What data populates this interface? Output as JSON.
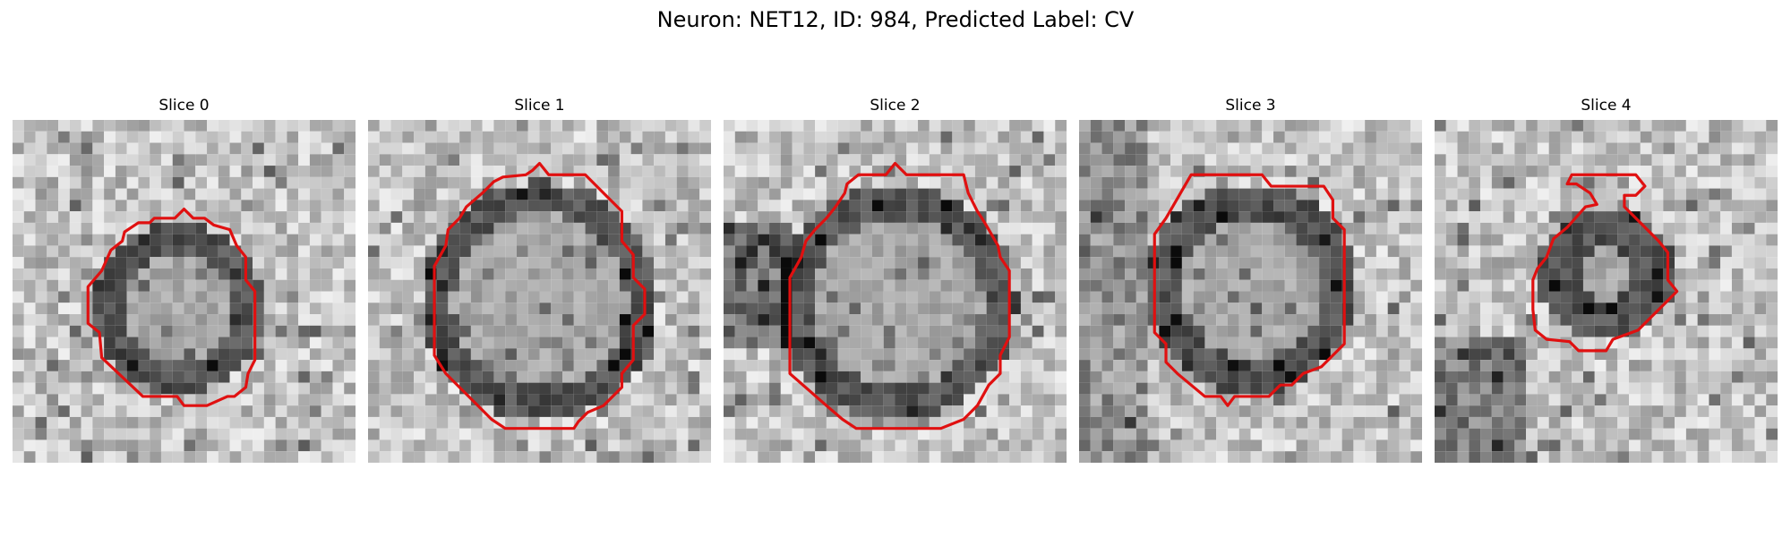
{
  "figure": {
    "title": "Neuron: NET12, ID: 984, Predicted Label: CV"
  },
  "panels": [
    {
      "title": "Slice 0"
    },
    {
      "title": "Slice 1"
    },
    {
      "title": "Slice 2"
    },
    {
      "title": "Slice 3"
    },
    {
      "title": "Slice 4"
    }
  ],
  "colors": {
    "contour": "#e01010",
    "background": "#ffffff"
  }
}
